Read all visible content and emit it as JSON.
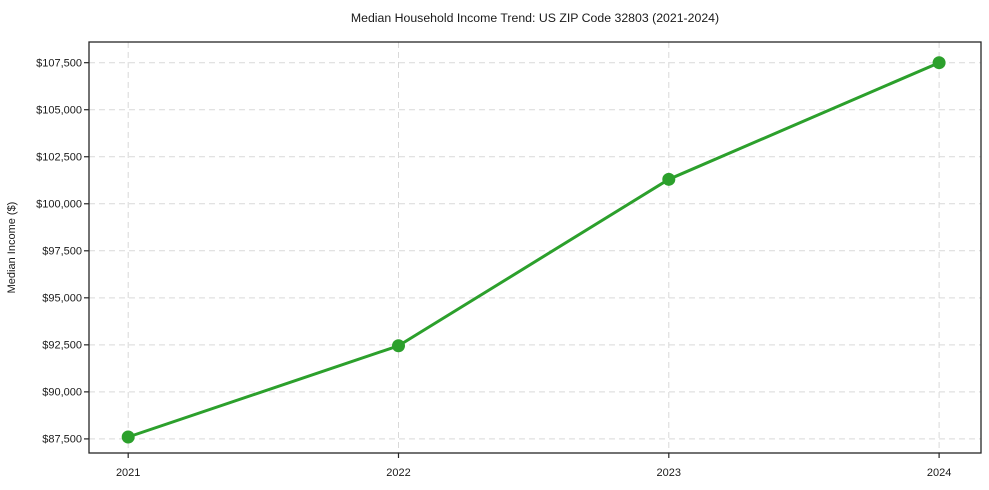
{
  "chart_data": {
    "type": "line",
    "title": "Median Household Income Trend: US ZIP Code 32803 (2021-2024)",
    "xlabel": "",
    "ylabel": "Median Income ($)",
    "x": [
      2021,
      2022,
      2023,
      2024
    ],
    "values": [
      87600,
      92450,
      101300,
      107500
    ],
    "xlim": [
      2020.855,
      2024.155
    ],
    "ylim": [
      86750,
      108600
    ],
    "xticks": {
      "values": [
        2021,
        2022,
        2023,
        2024
      ],
      "labels": [
        "2021",
        "2022",
        "2023",
        "2024"
      ]
    },
    "yticks": {
      "values": [
        87500,
        90000,
        92500,
        95000,
        97500,
        100000,
        102500,
        105000,
        107500
      ],
      "labels": [
        "$87,500",
        "$90,000",
        "$92,500",
        "$95,000",
        "$97,500",
        "$100,000",
        "$102,500",
        "$105,000",
        "$107,500"
      ]
    },
    "grid": true,
    "grid_style": "dashed",
    "legend": false,
    "colors": {
      "line": "#2ca02c",
      "marker": "#2ca02c",
      "grid": "#d9d9d9",
      "spine": "#262626",
      "tick": "#262626",
      "text": "#1a1a1a",
      "background": "#ffffff"
    }
  }
}
